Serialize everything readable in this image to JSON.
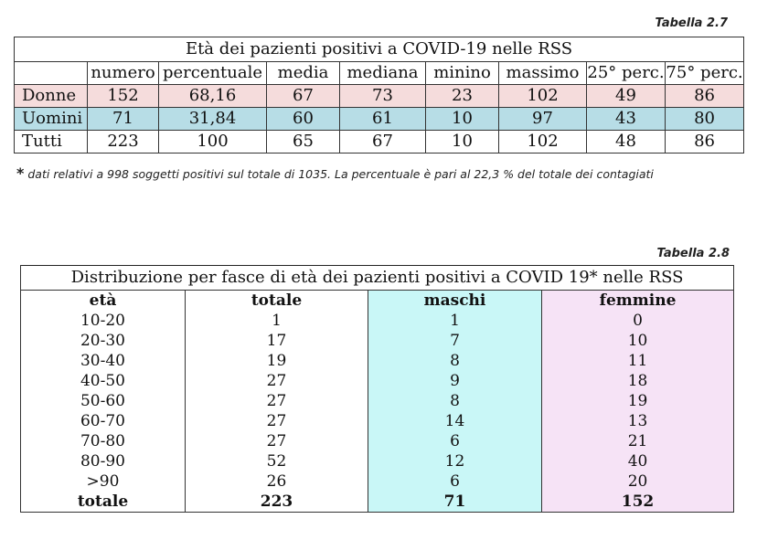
{
  "table27": {
    "caption": "Tabella 2.7",
    "title": "Età dei pazienti positivi a COVID-19 nelle RSS",
    "headers": [
      "numero",
      "percentuale",
      "media",
      "mediana",
      "minino",
      "massimo",
      "25° perc.",
      "75° perc."
    ],
    "rows": [
      {
        "label": "Donne",
        "values": [
          "152",
          "68,16",
          "67",
          "73",
          "23",
          "102",
          "49",
          "86"
        ]
      },
      {
        "label": "Uomini",
        "values": [
          "71",
          "31,84",
          "60",
          "61",
          "10",
          "97",
          "43",
          "80"
        ]
      },
      {
        "label": "Tutti",
        "values": [
          "223",
          "100",
          "65",
          "67",
          "10",
          "102",
          "48",
          "86"
        ]
      }
    ],
    "footnote_star": "*",
    "footnote": "dati relativi a 998 soggetti positivi sul totale di 1035. La percentuale è pari al 22,3 % del totale dei contagiati"
  },
  "table28": {
    "caption": "Tabella 2.8",
    "title": "Distribuzione per fasce di età dei pazienti positivi a COVID 19* nelle RSS",
    "headers": [
      "età",
      "totale",
      "maschi",
      "femmine"
    ],
    "rows": [
      [
        "10-20",
        "1",
        "1",
        "0"
      ],
      [
        "20-30",
        "17",
        "7",
        "10"
      ],
      [
        "30-40",
        "19",
        "8",
        "11"
      ],
      [
        "40-50",
        "27",
        "9",
        "18"
      ],
      [
        "50-60",
        "27",
        "8",
        "19"
      ],
      [
        "60-70",
        "27",
        "14",
        "13"
      ],
      [
        "70-80",
        "27",
        "6",
        "21"
      ],
      [
        "80-90",
        "52",
        "12",
        "40"
      ],
      [
        ">90",
        "26",
        "6",
        "20"
      ]
    ],
    "total": [
      "totale",
      "223",
      "71",
      "152"
    ]
  }
}
